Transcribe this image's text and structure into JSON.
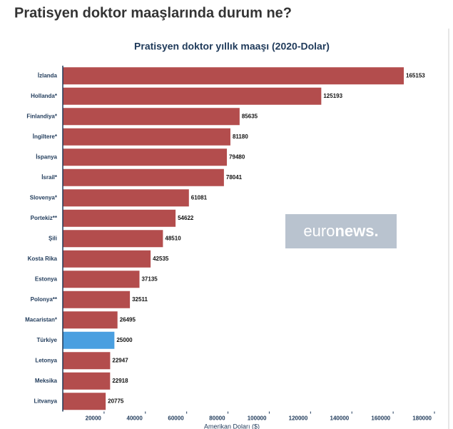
{
  "heading": "Pratisyen doktor maaşlarında durum ne?",
  "watermark": {
    "brand": "euro",
    "brand_bold": "news."
  },
  "chart_data": {
    "type": "barh",
    "title": "Pratisyen doktor yıllık maaşı (2020-Dolar)",
    "x_label": "Amerikan Doları ($)",
    "categories": [
      "İzlanda",
      "Hollanda*",
      "Finlandiya*",
      "İngiltere*",
      "İspanya",
      "İsrail*",
      "Slovenya*",
      "Portekiz**",
      "Şili",
      "Kosta Rika",
      "Estonya",
      "Polonya**",
      "Macaristan*",
      "Türkiye",
      "Letonya",
      "Meksika",
      "Litvanya"
    ],
    "values": [
      165153,
      125193,
      85635,
      81180,
      79480,
      78041,
      61081,
      54622,
      48510,
      42535,
      37135,
      32511,
      26495,
      25000,
      22947,
      22918,
      20775
    ],
    "colors": [
      "#b34d4d",
      "#b34d4d",
      "#b34d4d",
      "#b34d4d",
      "#b34d4d",
      "#b34d4d",
      "#b34d4d",
      "#b34d4d",
      "#b34d4d",
      "#b34d4d",
      "#b34d4d",
      "#b34d4d",
      "#b34d4d",
      "#4a9fe0",
      "#b34d4d",
      "#b34d4d",
      "#b34d4d"
    ],
    "xlim": [
      0,
      180000
    ],
    "xticks": [
      20000,
      40000,
      60000,
      80000,
      100000,
      120000,
      140000,
      160000,
      180000
    ]
  }
}
